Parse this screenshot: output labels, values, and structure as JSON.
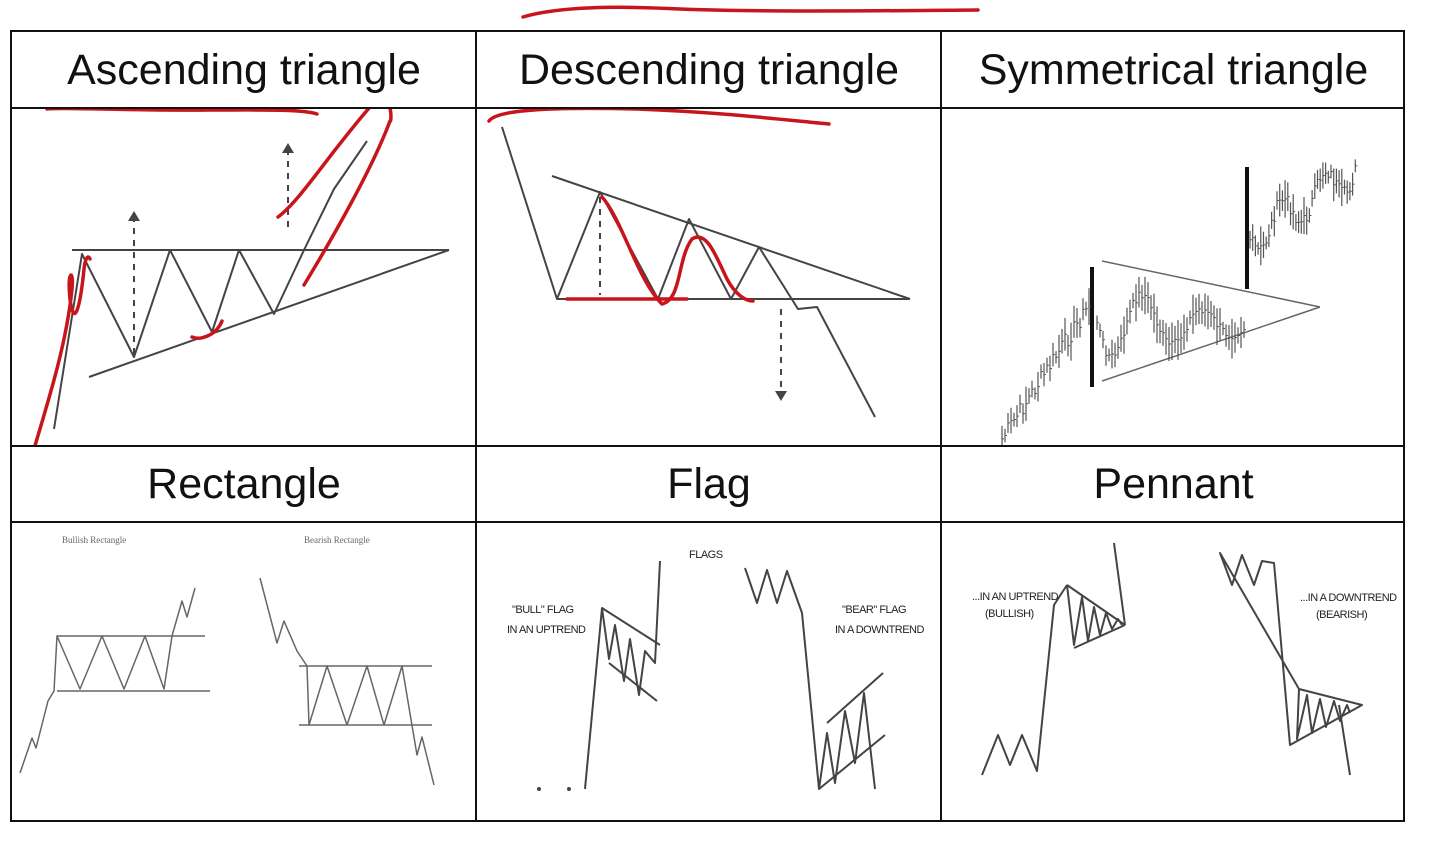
{
  "patterns": [
    {
      "name": "Ascending triangle"
    },
    {
      "name": "Descending triangle"
    },
    {
      "name": "Symmetrical triangle"
    },
    {
      "name": "Rectangle",
      "labels": {
        "bullish": "Bullish Rectangle",
        "bearish": "Bearish Rectangle"
      }
    },
    {
      "name": "Flag",
      "labels": {
        "title": "FLAGS",
        "bull_1": "\"BULL\" FLAG",
        "bull_2": "IN AN UPTREND",
        "bear_1": "\"BEAR\" FLAG",
        "bear_2": "IN A DOWNTREND"
      }
    },
    {
      "name": "Pennant",
      "labels": {
        "up_1": "...IN AN UPTREND",
        "up_2": "(BULLISH)",
        "down_1": "...IN A DOWNTREND",
        "down_2": "(BEARISH)"
      }
    }
  ],
  "colors": {
    "annotation": "#c8151b",
    "grid": "#111111",
    "pattern": "#444444"
  }
}
